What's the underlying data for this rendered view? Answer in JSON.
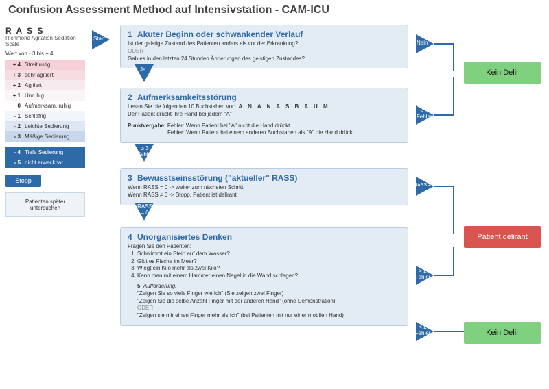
{
  "title": "Confusion Assessment Method auf Intensivstation - CAM-ICU",
  "rass": {
    "heading": "R A S S",
    "sub": "Richmond Agitation Sedation Scale",
    "range": "Wert von - 3 bis + 4",
    "rows": [
      {
        "v": "+ 4",
        "t": "Streitlustig",
        "bg": "#f6d0d6"
      },
      {
        "v": "+ 3",
        "t": "sehr agitiert",
        "bg": "#f6dde1"
      },
      {
        "v": "+ 2",
        "t": "Agitiert",
        "bg": "#f6eaee"
      },
      {
        "v": "+ 1",
        "t": "Unruhig",
        "bg": "#faf5f7"
      },
      {
        "v": "0",
        "t": "Aufmerksam, ruhig",
        "bg": "#ffffff"
      },
      {
        "v": "- 1",
        "t": "Schläfrig",
        "bg": "#f2f5fa"
      },
      {
        "v": "- 2",
        "t": "Leichte Sedierung",
        "bg": "#dde6f2"
      },
      {
        "v": "- 3",
        "t": "Mäßige Sedierung",
        "bg": "#c8d7ec"
      },
      {
        "v": "- 4",
        "t": "Tiefe Sedierung",
        "bg": "#2f6aa8",
        "fg": "#fff"
      },
      {
        "v": "- 5",
        "t": "nicht erweckbar",
        "bg": "#2f6aa8",
        "fg": "#fff"
      }
    ],
    "stopp": "Stopp",
    "later": "Patienten später untersuchen"
  },
  "start": "Start",
  "steps": {
    "s1": {
      "head": "Akuter Beginn oder schwankender Verlauf",
      "l1": "Ist der geistige Zustand des Patienten anders als vor der Erkrankung?",
      "or": "ODER",
      "l2": "Gab es in den letzten 24 Stunden Änderungen des geistigen Zustandes?",
      "right": "Nein",
      "down": "Ja"
    },
    "s2": {
      "head": "Aufmerksamkeitsstörung",
      "l1": "Lesen Sie die folgenden 10 Buchstaben vor:",
      "letters": "A N A N A S B A U M",
      "l2": "Der Patient drückt Ihre Hand bei jedem \"A\"",
      "pk": "Punktvergabe:",
      "pk1": "Fehler: Wenn Patient bei \"A\" nicht die Hand drückt",
      "pk2": "Fehler: Wenn Patient bei einem anderen Buchstaben als \"A\" die Hand drückt",
      "right": "< 3 Fehler",
      "down": "≥ 3 Fehler"
    },
    "s3": {
      "head": "Bewusstseinsstörung (\"aktueller\" RASS)",
      "l1": "Wenn RASS = 0 -> weiter zum nächsten Schritt",
      "l2": "Wenn RASS ≠ 0 -> Stopp, Patient ist delirant",
      "right": "RASS ≠ 0",
      "down": "RASS = 0"
    },
    "s4": {
      "head": "Unorganisiertes Denken",
      "intro": "Fragen Sie den Patienten:",
      "q1": "Schwimmt ein Stein auf dem Wasser?",
      "q2": "Gibt es Fische im Meer?",
      "q3": "Wiegt ein Kilo mehr als zwei Kilo?",
      "q4": "Kann man mit einem Hammer einen Nagel in die Wand schlagen?",
      "q5h": "Aufforderung:",
      "q5a": "\"Zeigen Sie so viele Finger wie Ich\" (Sie zeigen zwei Finger)",
      "q5b": "\"Zeigen Sie die selbe Anzahl Finger mit der anderen Hand\" (ohne Demonstration)",
      "or": "ODER",
      "q5c": "\"Zeigen sie mir einen Finger mehr als Ich\" (bei Patienten mit nur einer mobilen Hand)",
      "right1": "> 2 Fehler",
      "right2": "< 2 Fehler"
    }
  },
  "outcomes": {
    "nodelir": "Kein Delir",
    "delir": "Patient delirant"
  },
  "colors": {
    "blue": "#2f6aa8",
    "box": "#e3ecf5",
    "green": "#7fd17f",
    "red": "#d9534f"
  }
}
